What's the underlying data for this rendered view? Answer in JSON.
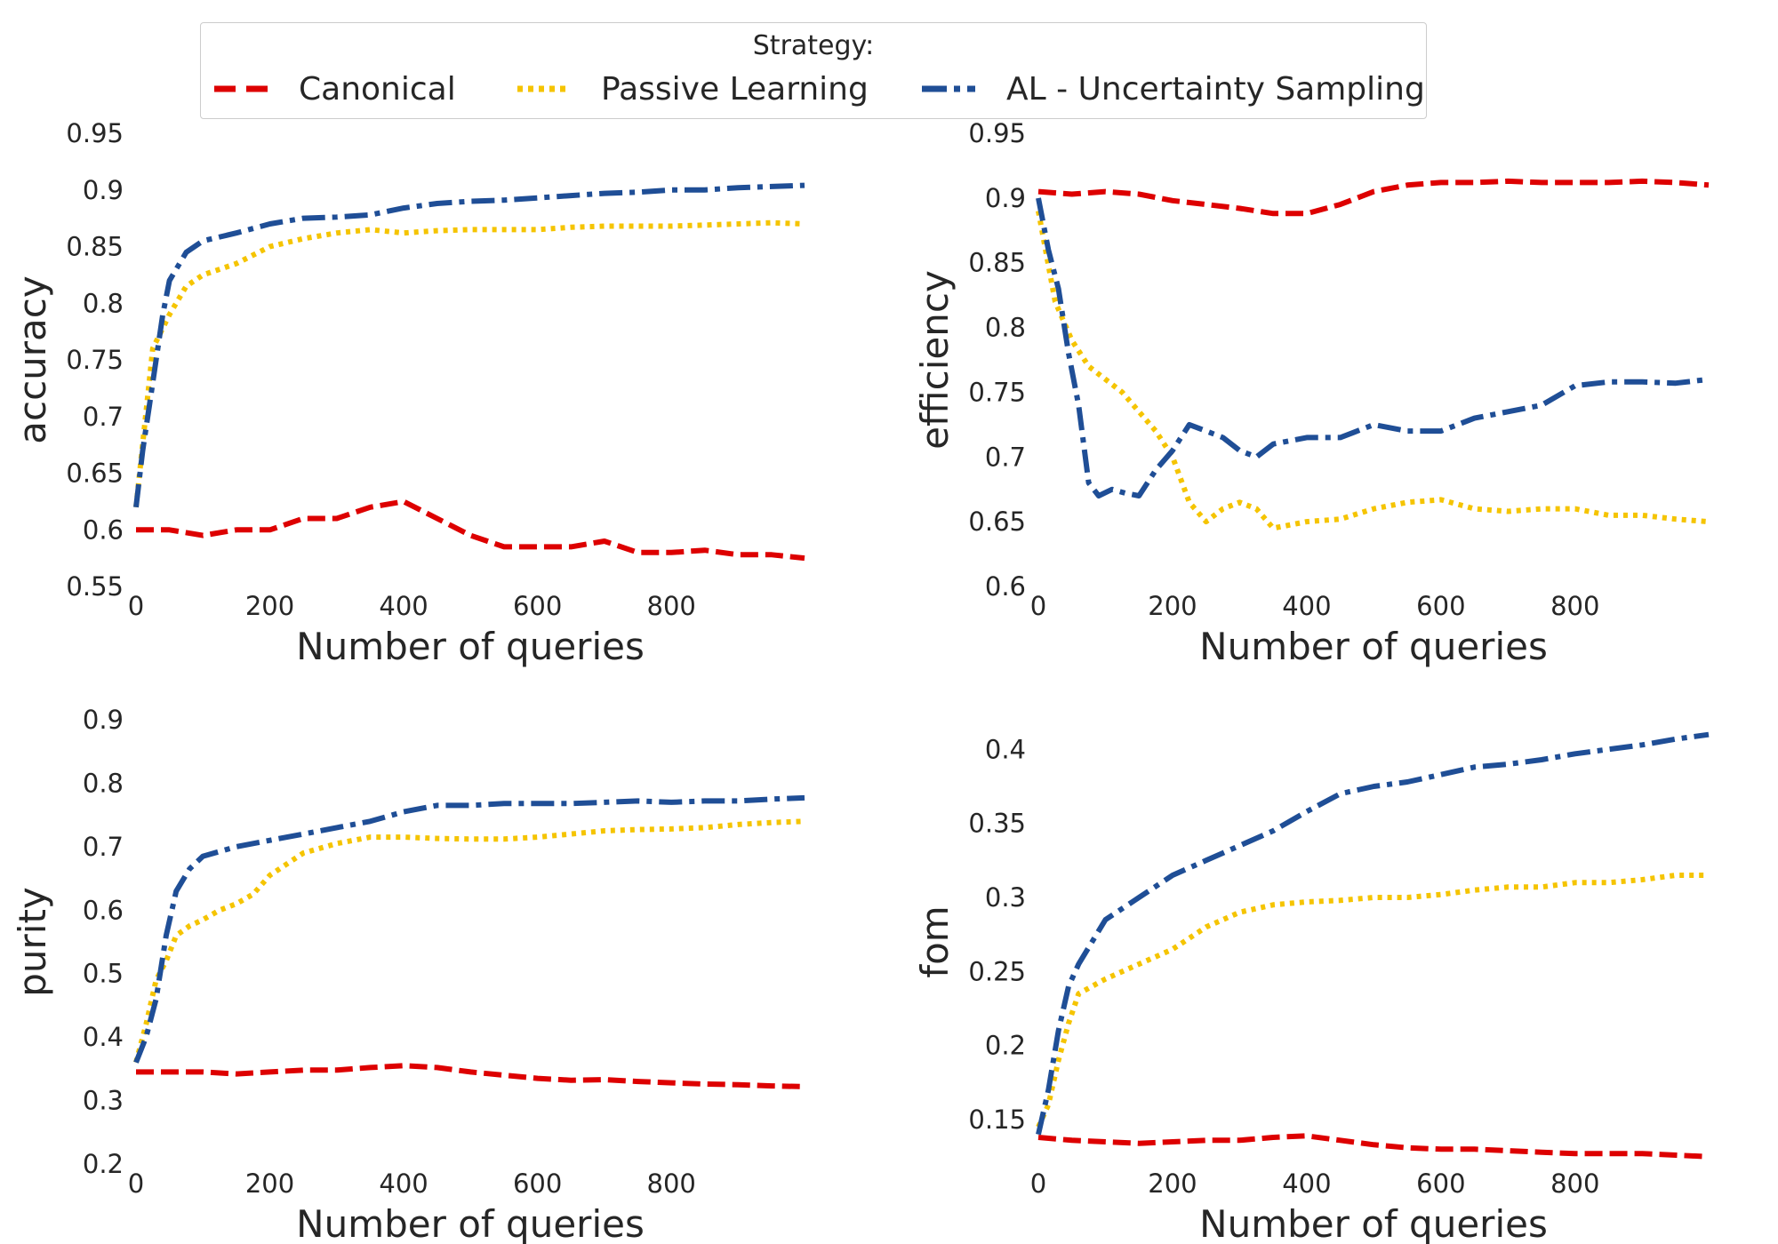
{
  "legend": {
    "title": "Strategy:",
    "items": [
      {
        "label": "Canonical",
        "color": "#dd0000",
        "style": "dashed"
      },
      {
        "label": "Passive Learning",
        "color": "#f5c400",
        "style": "dotted"
      },
      {
        "label": "AL - Uncertainty Sampling",
        "color": "#1f4e96",
        "style": "dashdot"
      }
    ]
  },
  "chart_data": [
    {
      "type": "line",
      "xlabel": "Number of queries",
      "ylabel": "accuracy",
      "xlim": [
        0,
        999
      ],
      "ylim": [
        0.55,
        0.95
      ],
      "xticks": [
        0,
        200,
        400,
        600,
        800
      ],
      "xtick_labels": [
        "0",
        "200",
        "400",
        "600",
        "800"
      ],
      "yticks": [
        0.55,
        0.6,
        0.65,
        0.7,
        0.75,
        0.8,
        0.85,
        0.9,
        0.95
      ],
      "ytick_labels": [
        "0.55",
        "0.6",
        "0.65",
        "0.7",
        "0.75",
        "0.8",
        "0.85",
        "0.9",
        "0.95"
      ],
      "grid": false,
      "series": [
        {
          "name": "Canonical",
          "x": [
            0,
            50,
            100,
            150,
            200,
            250,
            300,
            350,
            400,
            450,
            500,
            550,
            600,
            650,
            700,
            750,
            800,
            850,
            900,
            950,
            999
          ],
          "y": [
            0.6,
            0.6,
            0.595,
            0.6,
            0.6,
            0.61,
            0.61,
            0.62,
            0.625,
            0.61,
            0.595,
            0.585,
            0.585,
            0.585,
            0.59,
            0.58,
            0.58,
            0.582,
            0.578,
            0.578,
            0.575
          ]
        },
        {
          "name": "Passive Learning",
          "x": [
            0,
            25,
            50,
            75,
            100,
            150,
            200,
            250,
            300,
            350,
            400,
            450,
            500,
            550,
            600,
            650,
            700,
            750,
            800,
            850,
            900,
            950,
            999
          ],
          "y": [
            0.62,
            0.76,
            0.79,
            0.815,
            0.825,
            0.835,
            0.85,
            0.857,
            0.862,
            0.865,
            0.862,
            0.864,
            0.865,
            0.865,
            0.865,
            0.867,
            0.868,
            0.868,
            0.868,
            0.869,
            0.87,
            0.871,
            0.87
          ]
        },
        {
          "name": "AL - Uncertainty Sampling",
          "x": [
            0,
            10,
            20,
            30,
            40,
            50,
            75,
            100,
            150,
            200,
            250,
            300,
            350,
            400,
            450,
            500,
            550,
            600,
            650,
            700,
            750,
            800,
            850,
            900,
            950,
            999
          ],
          "y": [
            0.62,
            0.67,
            0.71,
            0.75,
            0.79,
            0.82,
            0.845,
            0.855,
            0.862,
            0.87,
            0.875,
            0.876,
            0.878,
            0.884,
            0.888,
            0.89,
            0.891,
            0.893,
            0.895,
            0.897,
            0.898,
            0.9,
            0.9,
            0.902,
            0.903,
            0.904
          ]
        }
      ]
    },
    {
      "type": "line",
      "xlabel": "Number of queries",
      "ylabel": "efficiency",
      "xlim": [
        0,
        999
      ],
      "ylim": [
        0.6,
        0.95
      ],
      "xticks": [
        0,
        200,
        400,
        600,
        800
      ],
      "xtick_labels": [
        "0",
        "200",
        "400",
        "600",
        "800"
      ],
      "yticks": [
        0.6,
        0.65,
        0.7,
        0.75,
        0.8,
        0.85,
        0.9,
        0.95
      ],
      "ytick_labels": [
        "0.6",
        "0.65",
        "0.7",
        "0.75",
        "0.8",
        "0.85",
        "0.9",
        "0.95"
      ],
      "grid": false,
      "series": [
        {
          "name": "Canonical",
          "x": [
            0,
            50,
            100,
            150,
            200,
            250,
            300,
            350,
            400,
            450,
            500,
            550,
            600,
            650,
            700,
            750,
            800,
            850,
            900,
            950,
            999
          ],
          "y": [
            0.905,
            0.903,
            0.905,
            0.903,
            0.898,
            0.895,
            0.892,
            0.888,
            0.888,
            0.895,
            0.905,
            0.91,
            0.912,
            0.912,
            0.913,
            0.912,
            0.912,
            0.912,
            0.913,
            0.912,
            0.91
          ]
        },
        {
          "name": "Passive Learning",
          "x": [
            0,
            25,
            50,
            75,
            100,
            125,
            150,
            175,
            200,
            225,
            250,
            275,
            300,
            325,
            350,
            400,
            450,
            500,
            550,
            600,
            650,
            700,
            750,
            800,
            850,
            900,
            950,
            999
          ],
          "y": [
            0.89,
            0.82,
            0.79,
            0.77,
            0.76,
            0.75,
            0.735,
            0.72,
            0.7,
            0.665,
            0.65,
            0.66,
            0.665,
            0.66,
            0.645,
            0.65,
            0.652,
            0.66,
            0.665,
            0.667,
            0.66,
            0.658,
            0.66,
            0.66,
            0.655,
            0.655,
            0.652,
            0.65
          ]
        },
        {
          "name": "AL - Uncertainty Sampling",
          "x": [
            0,
            15,
            30,
            45,
            60,
            75,
            90,
            110,
            130,
            150,
            175,
            200,
            225,
            250,
            275,
            300,
            325,
            350,
            400,
            450,
            500,
            550,
            600,
            650,
            700,
            750,
            800,
            850,
            900,
            950,
            999
          ],
          "y": [
            0.9,
            0.86,
            0.83,
            0.78,
            0.74,
            0.68,
            0.67,
            0.675,
            0.672,
            0.67,
            0.69,
            0.705,
            0.725,
            0.72,
            0.715,
            0.705,
            0.7,
            0.71,
            0.715,
            0.715,
            0.725,
            0.72,
            0.72,
            0.73,
            0.735,
            0.74,
            0.755,
            0.758,
            0.758,
            0.757,
            0.76
          ]
        }
      ]
    },
    {
      "type": "line",
      "xlabel": "Number of queries",
      "ylabel": "purity",
      "xlim": [
        0,
        999
      ],
      "ylim": [
        0.2,
        0.9
      ],
      "xticks": [
        0,
        200,
        400,
        600,
        800
      ],
      "xtick_labels": [
        "0",
        "200",
        "400",
        "600",
        "800"
      ],
      "yticks": [
        0.2,
        0.3,
        0.4,
        0.5,
        0.6,
        0.7,
        0.8,
        0.9
      ],
      "ytick_labels": [
        "0.2",
        "0.3",
        "0.4",
        "0.5",
        "0.6",
        "0.7",
        "0.8",
        "0.9"
      ],
      "grid": false,
      "series": [
        {
          "name": "Canonical",
          "x": [
            0,
            50,
            100,
            150,
            200,
            250,
            300,
            350,
            400,
            450,
            500,
            550,
            600,
            650,
            700,
            750,
            800,
            850,
            900,
            950,
            999
          ],
          "y": [
            0.345,
            0.345,
            0.345,
            0.342,
            0.345,
            0.348,
            0.348,
            0.352,
            0.355,
            0.352,
            0.345,
            0.34,
            0.335,
            0.332,
            0.333,
            0.33,
            0.328,
            0.326,
            0.325,
            0.323,
            0.322
          ]
        },
        {
          "name": "Passive Learning",
          "x": [
            0,
            15,
            30,
            45,
            60,
            80,
            100,
            125,
            150,
            175,
            200,
            250,
            300,
            350,
            400,
            450,
            500,
            550,
            600,
            650,
            700,
            750,
            800,
            850,
            900,
            950,
            999
          ],
          "y": [
            0.36,
            0.42,
            0.49,
            0.52,
            0.56,
            0.575,
            0.585,
            0.6,
            0.61,
            0.625,
            0.655,
            0.69,
            0.705,
            0.715,
            0.715,
            0.713,
            0.712,
            0.712,
            0.715,
            0.72,
            0.725,
            0.727,
            0.728,
            0.73,
            0.735,
            0.738,
            0.74
          ]
        },
        {
          "name": "AL - Uncertainty Sampling",
          "x": [
            0,
            15,
            30,
            45,
            60,
            80,
            100,
            150,
            200,
            250,
            300,
            350,
            400,
            450,
            500,
            550,
            600,
            650,
            700,
            750,
            800,
            850,
            900,
            950,
            999
          ],
          "y": [
            0.36,
            0.4,
            0.46,
            0.56,
            0.63,
            0.665,
            0.685,
            0.7,
            0.71,
            0.72,
            0.73,
            0.74,
            0.755,
            0.765,
            0.765,
            0.768,
            0.768,
            0.768,
            0.77,
            0.772,
            0.77,
            0.772,
            0.772,
            0.775,
            0.777
          ]
        }
      ]
    },
    {
      "type": "line",
      "xlabel": "Number of queries",
      "ylabel": "fom",
      "xlim": [
        0,
        999
      ],
      "ylim": [
        0.12,
        0.42
      ],
      "xticks": [
        0,
        200,
        400,
        600,
        800
      ],
      "xtick_labels": [
        "0",
        "200",
        "400",
        "600",
        "800"
      ],
      "yticks": [
        0.15,
        0.2,
        0.25,
        0.3,
        0.35,
        0.4
      ],
      "ytick_labels": [
        "0.15",
        "0.2",
        "0.25",
        "0.3",
        "0.35",
        "0.4"
      ],
      "grid": false,
      "series": [
        {
          "name": "Canonical",
          "x": [
            0,
            50,
            100,
            150,
            200,
            250,
            300,
            350,
            400,
            450,
            500,
            550,
            600,
            650,
            700,
            750,
            800,
            850,
            900,
            950,
            999
          ],
          "y": [
            0.138,
            0.136,
            0.135,
            0.134,
            0.135,
            0.136,
            0.136,
            0.138,
            0.139,
            0.136,
            0.133,
            0.131,
            0.13,
            0.13,
            0.129,
            0.128,
            0.127,
            0.127,
            0.127,
            0.126,
            0.125
          ]
        },
        {
          "name": "Passive Learning",
          "x": [
            0,
            15,
            30,
            45,
            60,
            80,
            100,
            150,
            200,
            250,
            300,
            350,
            400,
            450,
            500,
            550,
            600,
            650,
            700,
            750,
            800,
            850,
            900,
            950,
            999
          ],
          "y": [
            0.145,
            0.16,
            0.19,
            0.215,
            0.235,
            0.24,
            0.245,
            0.255,
            0.265,
            0.28,
            0.29,
            0.295,
            0.297,
            0.298,
            0.3,
            0.3,
            0.302,
            0.305,
            0.307,
            0.307,
            0.31,
            0.31,
            0.312,
            0.315,
            0.315
          ]
        },
        {
          "name": "AL - Uncertainty Sampling",
          "x": [
            0,
            15,
            30,
            45,
            60,
            80,
            100,
            150,
            200,
            250,
            300,
            350,
            400,
            450,
            500,
            550,
            600,
            650,
            700,
            750,
            800,
            850,
            900,
            950,
            999
          ],
          "y": [
            0.14,
            0.17,
            0.21,
            0.24,
            0.255,
            0.27,
            0.285,
            0.3,
            0.315,
            0.325,
            0.335,
            0.345,
            0.358,
            0.37,
            0.375,
            0.378,
            0.383,
            0.388,
            0.39,
            0.393,
            0.397,
            0.4,
            0.403,
            0.407,
            0.41
          ]
        }
      ]
    }
  ]
}
